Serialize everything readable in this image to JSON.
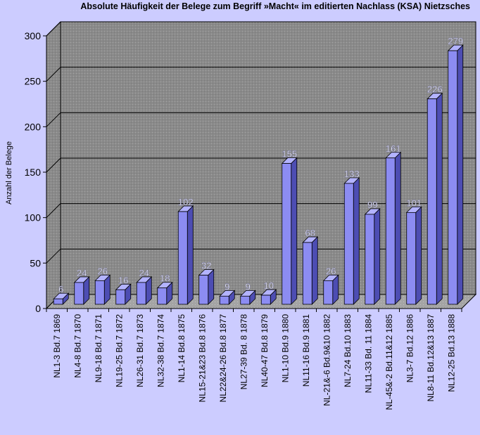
{
  "chart_data": {
    "type": "bar",
    "title": "Absolute Häufigkeit der Belege zum Begriff »Macht« im editierten Nachlass (KSA) Nietzsches",
    "ylabel": "Anzahl der Belege",
    "xlabel": "",
    "ylim": [
      0,
      300
    ],
    "yticks": [
      0,
      50,
      100,
      150,
      200,
      250,
      300
    ],
    "grid": true,
    "legend": "none",
    "categories": [
      "NL1-3 Bd.7 1869",
      "NL4-8 Bd.7 1870",
      "NL9-18 Bd.7 1871",
      "NL19-25 Bd.7 1872",
      "NL26-31 Bd.7 1873",
      "NL32-38 Bd.7 1874",
      "NL1-14 Bd.8 1875",
      "NL15-21&23 Bd.8 1876",
      "NL22&24-26 Bd.8 1877",
      "NL27-39 Bd. 8 1878",
      "NL40-47 Bd.8 1879",
      "NL1-10 Bd.9 1880",
      "NL11-16 Bd.9 1881",
      "NL-21&-6 Bd.9&10 1882",
      "NL7-24 Bd.10 1883",
      "NL11-33 Bd. 11 1884",
      "NL-45&-2 Bd.11&12 1885",
      "NL3-7 Bd.12 1886",
      "NL8-11 Bd.12&13 1887",
      "NL12-25 Bd.13 1888"
    ],
    "values": [
      6,
      24,
      26,
      16,
      24,
      18,
      102,
      32,
      9,
      9,
      10,
      155,
      68,
      26,
      133,
      99,
      161,
      101,
      226,
      279
    ],
    "colors": {
      "background": "#ccccff",
      "plot_wall": "#8a8a8a",
      "plot_floor": "#aaaaaa",
      "bar_front": "#8c8cf2",
      "bar_side": "#4d4db3",
      "bar_top": "#b3b3ff",
      "gridline": "#000000"
    }
  }
}
